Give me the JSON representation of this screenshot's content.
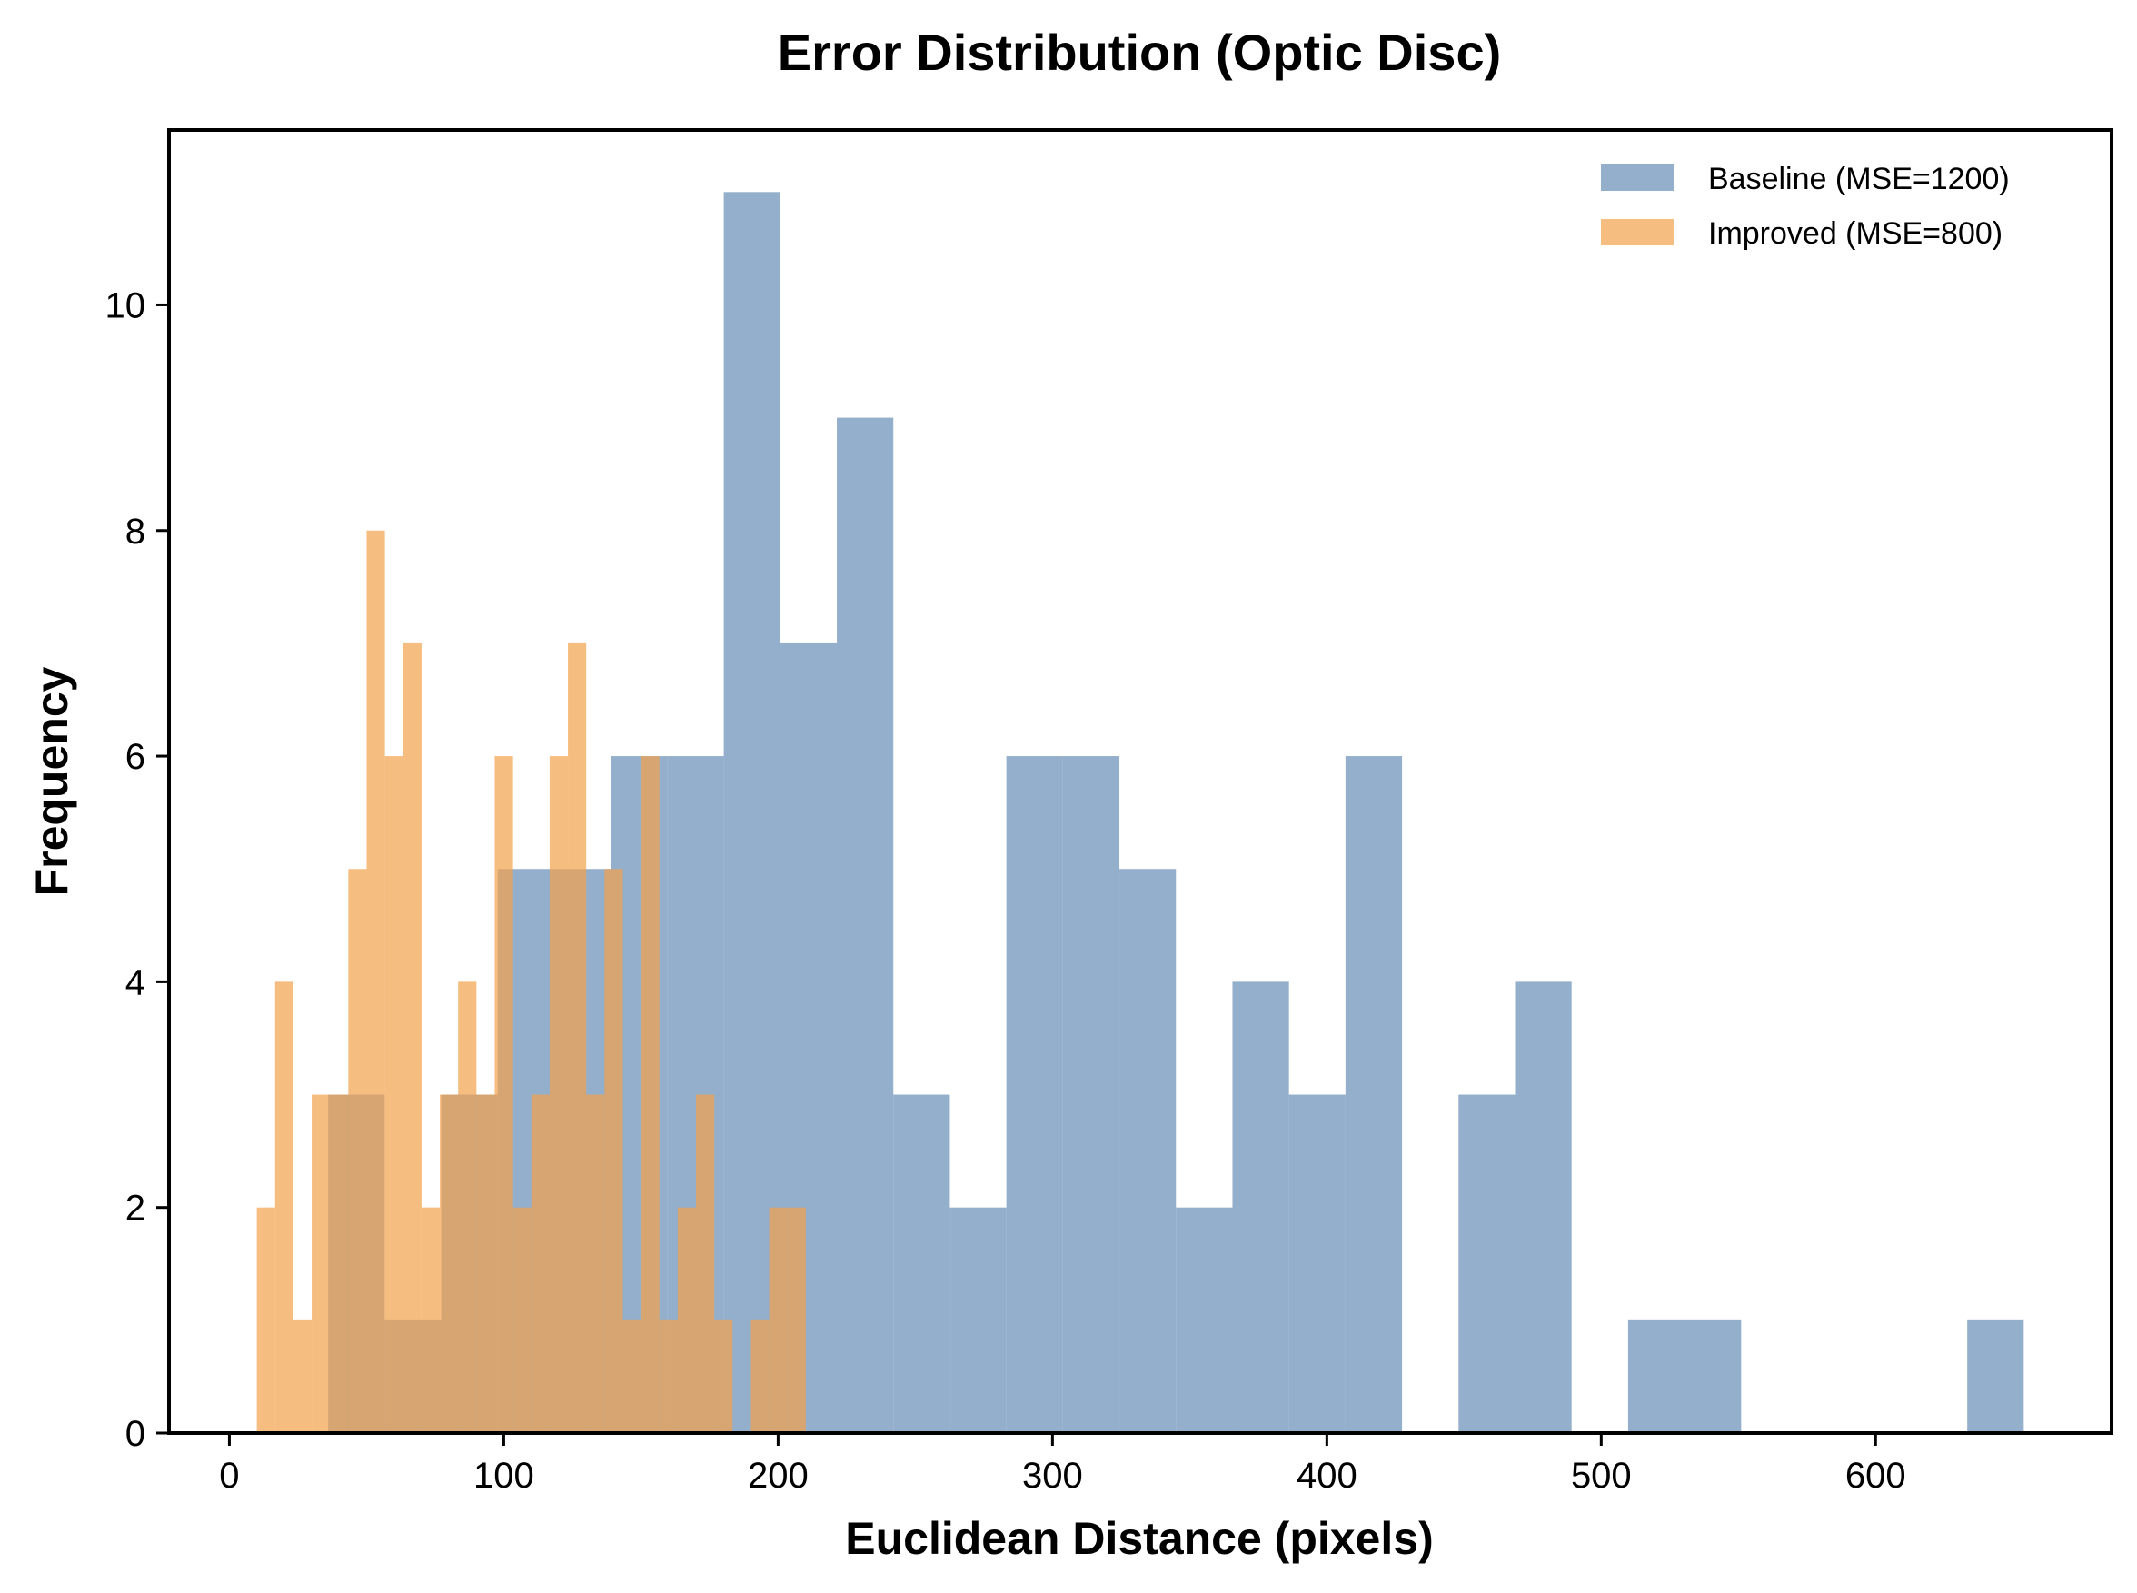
{
  "chart_data": {
    "type": "bar",
    "title": "Error Distribution (Optic Disc)",
    "xlabel": "Euclidean Distance (pixels)",
    "ylabel": "Frequency",
    "xlim": [
      -22,
      686
    ],
    "ylim": [
      0,
      11.55
    ],
    "xticks": [
      0,
      100,
      200,
      300,
      400,
      500,
      600
    ],
    "yticks": [
      0,
      2,
      4,
      6,
      8,
      10
    ],
    "grid": false,
    "legend_position": "top-right",
    "series": [
      {
        "name": "Baseline (MSE=1200)",
        "color": "#7094bb",
        "opacity": 0.75,
        "bin_start": 36,
        "bin_width": 20.6,
        "counts": [
          3,
          1,
          3,
          5,
          5,
          6,
          6,
          11,
          7,
          9,
          3,
          2,
          6,
          6,
          5,
          2,
          4,
          3,
          6,
          0,
          3,
          4,
          0,
          1,
          1,
          0,
          0,
          0,
          0,
          1
        ]
      },
      {
        "name": "Improved (MSE=800)",
        "color": "#f2a14a",
        "opacity": 0.7,
        "bin_start": 10,
        "bin_width": 6.67,
        "counts": [
          2,
          4,
          1,
          3,
          3,
          5,
          8,
          6,
          7,
          2,
          3,
          4,
          3,
          6,
          2,
          3,
          6,
          7,
          3,
          5,
          1,
          6,
          1,
          2,
          3,
          1,
          0,
          1,
          2,
          2
        ]
      }
    ]
  }
}
